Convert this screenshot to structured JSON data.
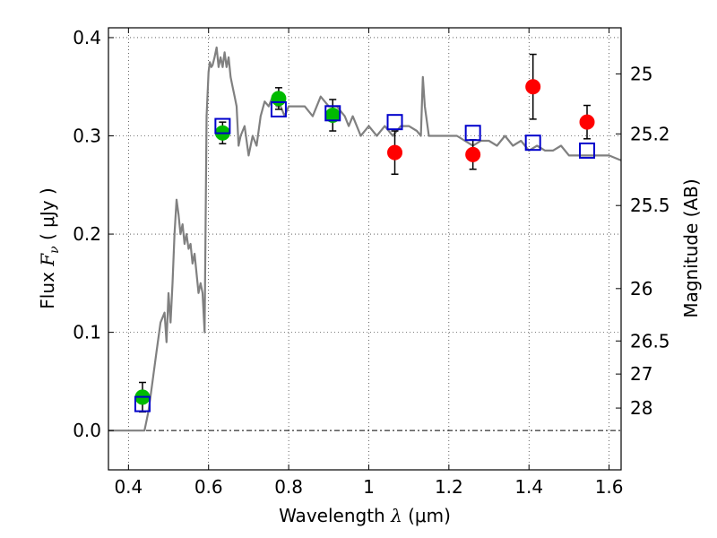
{
  "chart_data": {
    "type": "scatter",
    "xlabel": {
      "prefix": "Wavelength  ",
      "symbol": "λ",
      "unit": " (μm)"
    },
    "ylabel": {
      "prefix": "Flux  ",
      "symbol": "F",
      "subscript": "ν",
      "unit": "  ( μJy )"
    },
    "y2label": "Magnitude (AB)",
    "xlim": [
      0.35,
      1.63
    ],
    "ylim": [
      -0.04,
      0.41
    ],
    "grid": true,
    "x_ticks": [
      {
        "v": 0.4,
        "label": "0.4"
      },
      {
        "v": 0.6,
        "label": "0.6"
      },
      {
        "v": 0.8,
        "label": "0.8"
      },
      {
        "v": 1.0,
        "label": "1"
      },
      {
        "v": 1.2,
        "label": "1.2"
      },
      {
        "v": 1.4,
        "label": "1.4"
      },
      {
        "v": 1.6,
        "label": "1.6"
      }
    ],
    "y_ticks": [
      {
        "v": 0.0,
        "label": "0.0"
      },
      {
        "v": 0.1,
        "label": "0.1"
      },
      {
        "v": 0.2,
        "label": "0.2"
      },
      {
        "v": 0.3,
        "label": "0.3"
      },
      {
        "v": 0.4,
        "label": "0.4"
      }
    ],
    "y2_ticks": [
      {
        "mag": 25,
        "label": "25"
      },
      {
        "mag": 25.2,
        "label": "25.2"
      },
      {
        "mag": 25.5,
        "label": "25.5"
      },
      {
        "mag": 26,
        "label": "26"
      },
      {
        "mag": 26.5,
        "label": "26.5"
      },
      {
        "mag": 27,
        "label": "27"
      },
      {
        "mag": 28,
        "label": "28"
      }
    ],
    "series": [
      {
        "kind": "line",
        "color": "#808080",
        "x": [
          0.35,
          0.44,
          0.445,
          0.45,
          0.46,
          0.47,
          0.48,
          0.49,
          0.495,
          0.5,
          0.505,
          0.51,
          0.515,
          0.52,
          0.525,
          0.53,
          0.535,
          0.54,
          0.545,
          0.55,
          0.555,
          0.56,
          0.565,
          0.57,
          0.575,
          0.58,
          0.585,
          0.59,
          0.595,
          0.6,
          0.603,
          0.607,
          0.61,
          0.615,
          0.62,
          0.625,
          0.63,
          0.635,
          0.64,
          0.645,
          0.65,
          0.655,
          0.66,
          0.665,
          0.67,
          0.675,
          0.68,
          0.69,
          0.7,
          0.71,
          0.72,
          0.73,
          0.74,
          0.75,
          0.76,
          0.77,
          0.78,
          0.79,
          0.8,
          0.82,
          0.84,
          0.86,
          0.88,
          0.9,
          0.92,
          0.94,
          0.95,
          0.96,
          0.97,
          0.98,
          1.0,
          1.02,
          1.04,
          1.06,
          1.08,
          1.1,
          1.12,
          1.13,
          1.135,
          1.14,
          1.15,
          1.16,
          1.18,
          1.2,
          1.22,
          1.24,
          1.26,
          1.28,
          1.3,
          1.32,
          1.34,
          1.36,
          1.38,
          1.4,
          1.42,
          1.44,
          1.46,
          1.48,
          1.5,
          1.52,
          1.54,
          1.56,
          1.58,
          1.6,
          1.63
        ],
        "y": [
          0.0,
          0.0,
          0.01,
          0.02,
          0.05,
          0.08,
          0.11,
          0.12,
          0.09,
          0.14,
          0.11,
          0.15,
          0.2,
          0.235,
          0.22,
          0.2,
          0.21,
          0.19,
          0.2,
          0.185,
          0.19,
          0.17,
          0.18,
          0.16,
          0.14,
          0.15,
          0.14,
          0.1,
          0.32,
          0.365,
          0.375,
          0.37,
          0.372,
          0.38,
          0.39,
          0.37,
          0.38,
          0.37,
          0.385,
          0.37,
          0.38,
          0.36,
          0.35,
          0.34,
          0.33,
          0.29,
          0.3,
          0.31,
          0.28,
          0.3,
          0.29,
          0.32,
          0.335,
          0.33,
          0.34,
          0.33,
          0.33,
          0.32,
          0.33,
          0.33,
          0.33,
          0.32,
          0.34,
          0.33,
          0.33,
          0.32,
          0.31,
          0.32,
          0.31,
          0.3,
          0.31,
          0.3,
          0.31,
          0.3,
          0.31,
          0.31,
          0.305,
          0.3,
          0.36,
          0.33,
          0.3,
          0.3,
          0.3,
          0.3,
          0.3,
          0.295,
          0.29,
          0.295,
          0.295,
          0.29,
          0.3,
          0.29,
          0.295,
          0.285,
          0.29,
          0.285,
          0.285,
          0.29,
          0.28,
          0.28,
          0.28,
          0.28,
          0.28,
          0.28,
          0.275
        ]
      },
      {
        "kind": "points",
        "marker": "circle",
        "color": "#00bb00",
        "x": [
          0.435,
          0.635,
          0.775,
          0.91
        ],
        "y": [
          0.034,
          0.303,
          0.338,
          0.321
        ],
        "yerr": [
          0.015,
          0.011,
          0.011,
          0.016
        ]
      },
      {
        "kind": "points",
        "marker": "circle",
        "color": "#ff0000",
        "x": [
          1.065,
          1.26,
          1.41,
          1.545
        ],
        "y": [
          0.283,
          0.281,
          0.35,
          0.314
        ],
        "yerr": [
          0.022,
          0.015,
          0.033,
          0.017
        ]
      },
      {
        "kind": "points",
        "marker": "square",
        "color": "#0000cc",
        "x": [
          0.435,
          0.635,
          0.775,
          0.91,
          1.065,
          1.26,
          1.41,
          1.545
        ],
        "y": [
          0.027,
          0.31,
          0.327,
          0.323,
          0.314,
          0.303,
          0.293,
          0.285
        ]
      }
    ]
  }
}
